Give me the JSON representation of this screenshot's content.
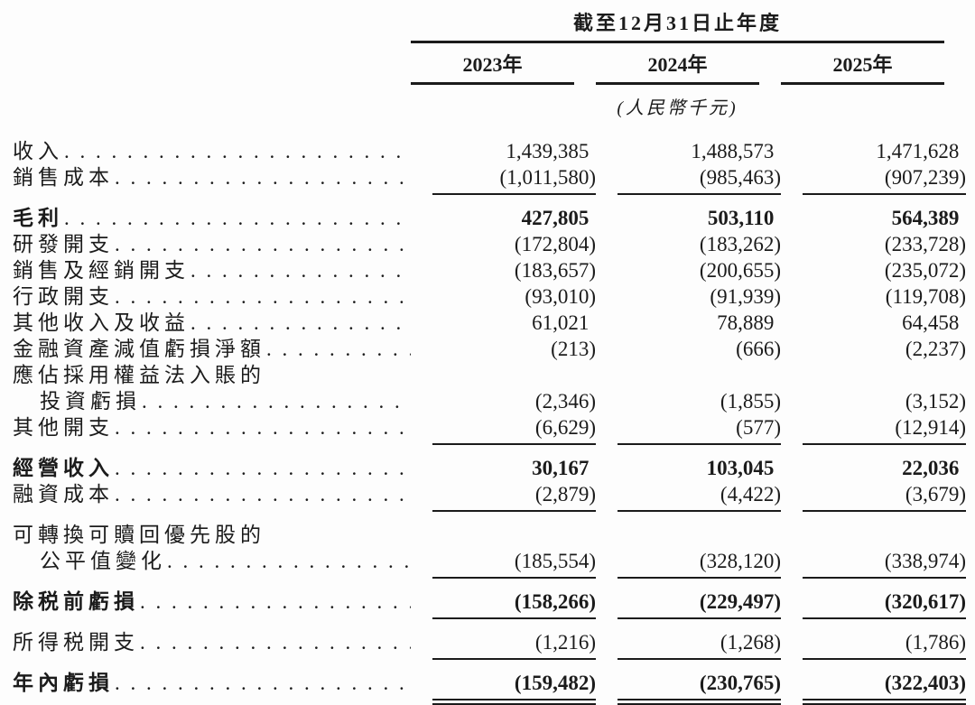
{
  "header": {
    "period_title": "截至12月31日止年度",
    "columns": [
      "2023年",
      "2024年",
      "2025年"
    ],
    "unit_note": "(人民幣千元)"
  },
  "chart_data": {
    "type": "table",
    "title": "截至12月31日止年度",
    "unit": "人民幣千元",
    "categories": [
      "2023年",
      "2024年",
      "2025年"
    ],
    "series": [
      {
        "name": "收入",
        "values": [
          1439385,
          1488573,
          1471628
        ]
      },
      {
        "name": "銷售成本",
        "values": [
          -1011580,
          -985463,
          -907239
        ]
      },
      {
        "name": "毛利",
        "values": [
          427805,
          503110,
          564389
        ]
      },
      {
        "name": "研發開支",
        "values": [
          -172804,
          -183262,
          -233728
        ]
      },
      {
        "name": "銷售及經銷開支",
        "values": [
          -183657,
          -200655,
          -235072
        ]
      },
      {
        "name": "行政開支",
        "values": [
          -93010,
          -91939,
          -119708
        ]
      },
      {
        "name": "其他收入及收益",
        "values": [
          61021,
          78889,
          64458
        ]
      },
      {
        "name": "金融資產減值虧損淨額",
        "values": [
          -213,
          -666,
          -2237
        ]
      },
      {
        "name": "應佔採用權益法入賬的投資虧損",
        "values": [
          -2346,
          -1855,
          -3152
        ]
      },
      {
        "name": "其他開支",
        "values": [
          -6629,
          -577,
          -12914
        ]
      },
      {
        "name": "經營收入",
        "values": [
          30167,
          103045,
          22036
        ]
      },
      {
        "name": "融資成本",
        "values": [
          -2879,
          -4422,
          -3679
        ]
      },
      {
        "name": "可轉換可贖回優先股的公平值變化",
        "values": [
          -185554,
          -328120,
          -338974
        ]
      },
      {
        "name": "除税前虧損",
        "values": [
          -158266,
          -229497,
          -320617
        ]
      },
      {
        "name": "所得税開支",
        "values": [
          -1216,
          -1268,
          -1786
        ]
      },
      {
        "name": "年內虧損",
        "values": [
          -159482,
          -230765,
          -322403
        ]
      }
    ]
  },
  "rows": [
    {
      "label": "收入",
      "dots": true,
      "values": [
        "1,439,385",
        "1,488,573",
        "1,471,628"
      ]
    },
    {
      "label": "銷售成本",
      "dots": true,
      "rule": "single",
      "values": [
        "(1,011,580)",
        "(985,463)",
        "(907,239)"
      ]
    },
    {
      "label": "毛利",
      "dots": true,
      "bold": true,
      "gap": true,
      "values": [
        "427,805",
        "503,110",
        "564,389"
      ]
    },
    {
      "label": "研發開支",
      "dots": true,
      "values": [
        "(172,804)",
        "(183,262)",
        "(233,728)"
      ]
    },
    {
      "label": "銷售及經銷開支",
      "dots": true,
      "values": [
        "(183,657)",
        "(200,655)",
        "(235,072)"
      ]
    },
    {
      "label": "行政開支",
      "dots": true,
      "values": [
        "(93,010)",
        "(91,939)",
        "(119,708)"
      ]
    },
    {
      "label": "其他收入及收益",
      "dots": true,
      "values": [
        "61,021",
        "78,889",
        "64,458"
      ]
    },
    {
      "label": "金融資產減值虧損淨額",
      "dots": true,
      "values": [
        "(213)",
        "(666)",
        "(2,237)"
      ]
    },
    {
      "label": "應佔採用權益法入賬的",
      "dots": false,
      "values": null
    },
    {
      "label": "投資虧損",
      "indent": true,
      "dots": true,
      "values": [
        "(2,346)",
        "(1,855)",
        "(3,152)"
      ]
    },
    {
      "label": "其他開支",
      "dots": true,
      "rule": "single",
      "values": [
        "(6,629)",
        "(577)",
        "(12,914)"
      ]
    },
    {
      "label": "經營收入",
      "dots": true,
      "bold": true,
      "gap": true,
      "values": [
        "30,167",
        "103,045",
        "22,036"
      ]
    },
    {
      "label": "融資成本",
      "dots": true,
      "rule": "single",
      "values": [
        "(2,879)",
        "(4,422)",
        "(3,679)"
      ]
    },
    {
      "label": "可轉換可贖回優先股的",
      "dots": false,
      "gap": true,
      "values": null
    },
    {
      "label": "公平值變化",
      "indent": true,
      "dots": true,
      "rule": "single",
      "values": [
        "(185,554)",
        "(328,120)",
        "(338,974)"
      ]
    },
    {
      "label": "除税前虧損",
      "dots": true,
      "bold": true,
      "gap": true,
      "rule": "single",
      "values": [
        "(158,266)",
        "(229,497)",
        "(320,617)"
      ]
    },
    {
      "label": "所得税開支",
      "dots": true,
      "gap": true,
      "rule": "single",
      "values": [
        "(1,216)",
        "(1,268)",
        "(1,786)"
      ]
    },
    {
      "label": "年內虧損",
      "dots": true,
      "bold": true,
      "gap": true,
      "rule": "double",
      "values": [
        "(159,482)",
        "(230,765)",
        "(322,403)"
      ]
    }
  ]
}
